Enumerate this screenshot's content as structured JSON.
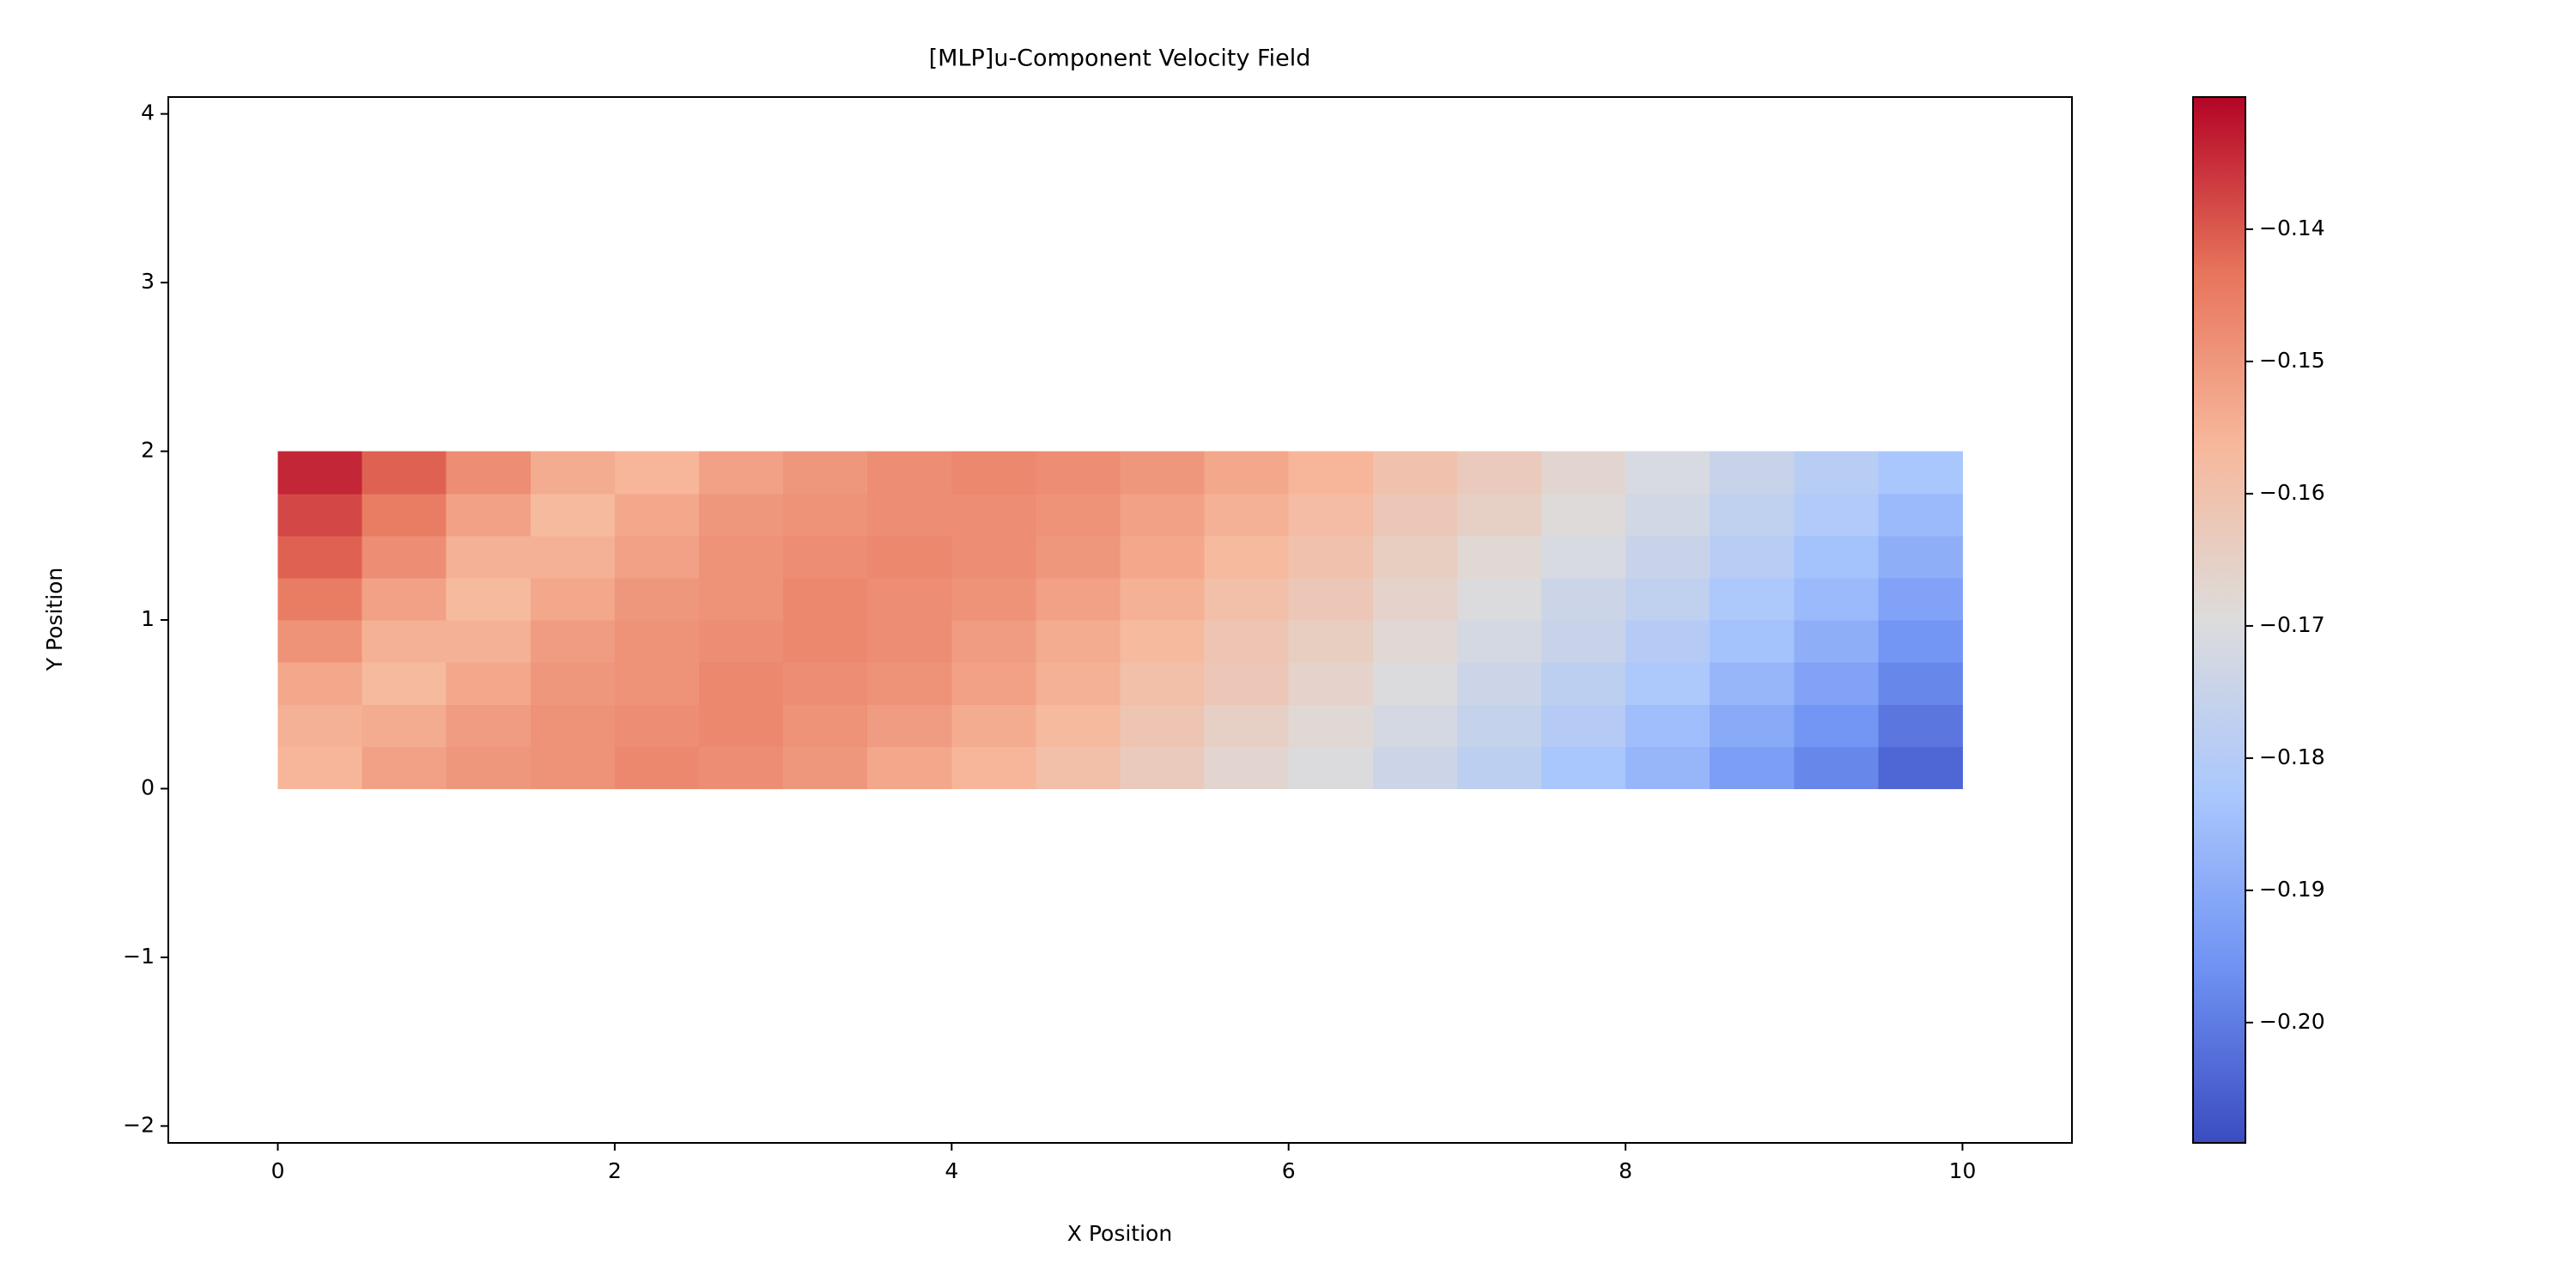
{
  "chart_data": {
    "type": "heatmap",
    "title": "[MLP]u-Component Velocity Field",
    "x_label": "X Position",
    "y_label": "Y Position",
    "x": [
      0.25,
      0.75,
      1.25,
      1.75,
      2.25,
      2.75,
      3.25,
      3.75,
      4.25,
      4.75,
      5.25,
      5.75,
      6.25,
      6.75,
      7.25,
      7.75,
      8.25,
      8.75,
      9.25,
      9.75
    ],
    "y": [
      0.125,
      0.375,
      0.625,
      0.875,
      1.125,
      1.375,
      1.625,
      1.875
    ],
    "z": [
      [
        -0.156,
        -0.152,
        -0.15,
        -0.149,
        -0.147,
        -0.148,
        -0.15,
        -0.153,
        -0.156,
        -0.159,
        -0.163,
        -0.167,
        -0.17,
        -0.174,
        -0.178,
        -0.183,
        -0.187,
        -0.193,
        -0.198,
        -0.204
      ],
      [
        -0.155,
        -0.154,
        -0.151,
        -0.149,
        -0.148,
        -0.147,
        -0.149,
        -0.151,
        -0.154,
        -0.157,
        -0.161,
        -0.165,
        -0.168,
        -0.172,
        -0.176,
        -0.18,
        -0.185,
        -0.19,
        -0.195,
        -0.201
      ],
      [
        -0.153,
        -0.157,
        -0.153,
        -0.15,
        -0.149,
        -0.147,
        -0.148,
        -0.149,
        -0.152,
        -0.155,
        -0.159,
        -0.162,
        -0.166,
        -0.17,
        -0.174,
        -0.178,
        -0.182,
        -0.187,
        -0.192,
        -0.198
      ],
      [
        -0.149,
        -0.155,
        -0.155,
        -0.151,
        -0.149,
        -0.148,
        -0.147,
        -0.148,
        -0.151,
        -0.154,
        -0.157,
        -0.161,
        -0.164,
        -0.168,
        -0.172,
        -0.175,
        -0.18,
        -0.184,
        -0.189,
        -0.195
      ],
      [
        -0.145,
        -0.152,
        -0.157,
        -0.153,
        -0.15,
        -0.149,
        -0.147,
        -0.148,
        -0.149,
        -0.152,
        -0.155,
        -0.159,
        -0.162,
        -0.166,
        -0.17,
        -0.174,
        -0.177,
        -0.182,
        -0.186,
        -0.192
      ],
      [
        -0.141,
        -0.148,
        -0.155,
        -0.155,
        -0.152,
        -0.149,
        -0.148,
        -0.147,
        -0.148,
        -0.15,
        -0.153,
        -0.157,
        -0.16,
        -0.164,
        -0.168,
        -0.171,
        -0.175,
        -0.179,
        -0.184,
        -0.189
      ],
      [
        -0.138,
        -0.145,
        -0.152,
        -0.157,
        -0.153,
        -0.15,
        -0.149,
        -0.148,
        -0.148,
        -0.149,
        -0.152,
        -0.155,
        -0.158,
        -0.162,
        -0.165,
        -0.169,
        -0.173,
        -0.177,
        -0.181,
        -0.186
      ],
      [
        -0.134,
        -0.141,
        -0.148,
        -0.154,
        -0.156,
        -0.152,
        -0.15,
        -0.148,
        -0.147,
        -0.148,
        -0.15,
        -0.153,
        -0.156,
        -0.16,
        -0.163,
        -0.167,
        -0.171,
        -0.175,
        -0.179,
        -0.183
      ]
    ],
    "xlim": [
      -0.65,
      10.65
    ],
    "ylim": [
      -2.1,
      4.1
    ],
    "xticks": [
      0,
      2,
      4,
      6,
      8,
      10
    ],
    "yticks": [
      {
        "value": -2,
        "label": "−2"
      },
      {
        "value": -1,
        "label": "−1"
      },
      0,
      1,
      2,
      3,
      4
    ],
    "clim": [
      -0.2091,
      -0.13
    ],
    "cticks": [
      {
        "value": -0.2,
        "label": "−0.20"
      },
      {
        "value": -0.19,
        "label": "−0.19"
      },
      {
        "value": -0.18,
        "label": "−0.18"
      },
      {
        "value": -0.17,
        "label": "−0.17"
      },
      {
        "value": -0.16,
        "label": "−0.16"
      },
      {
        "value": -0.15,
        "label": "−0.15"
      },
      {
        "value": -0.14,
        "label": "−0.14"
      }
    ],
    "color_stops": [
      "#3b4cc0",
      "#6f92f3",
      "#aac7fd",
      "#dddcdc",
      "#f7b89c",
      "#e7745b",
      "#b40426"
    ]
  }
}
